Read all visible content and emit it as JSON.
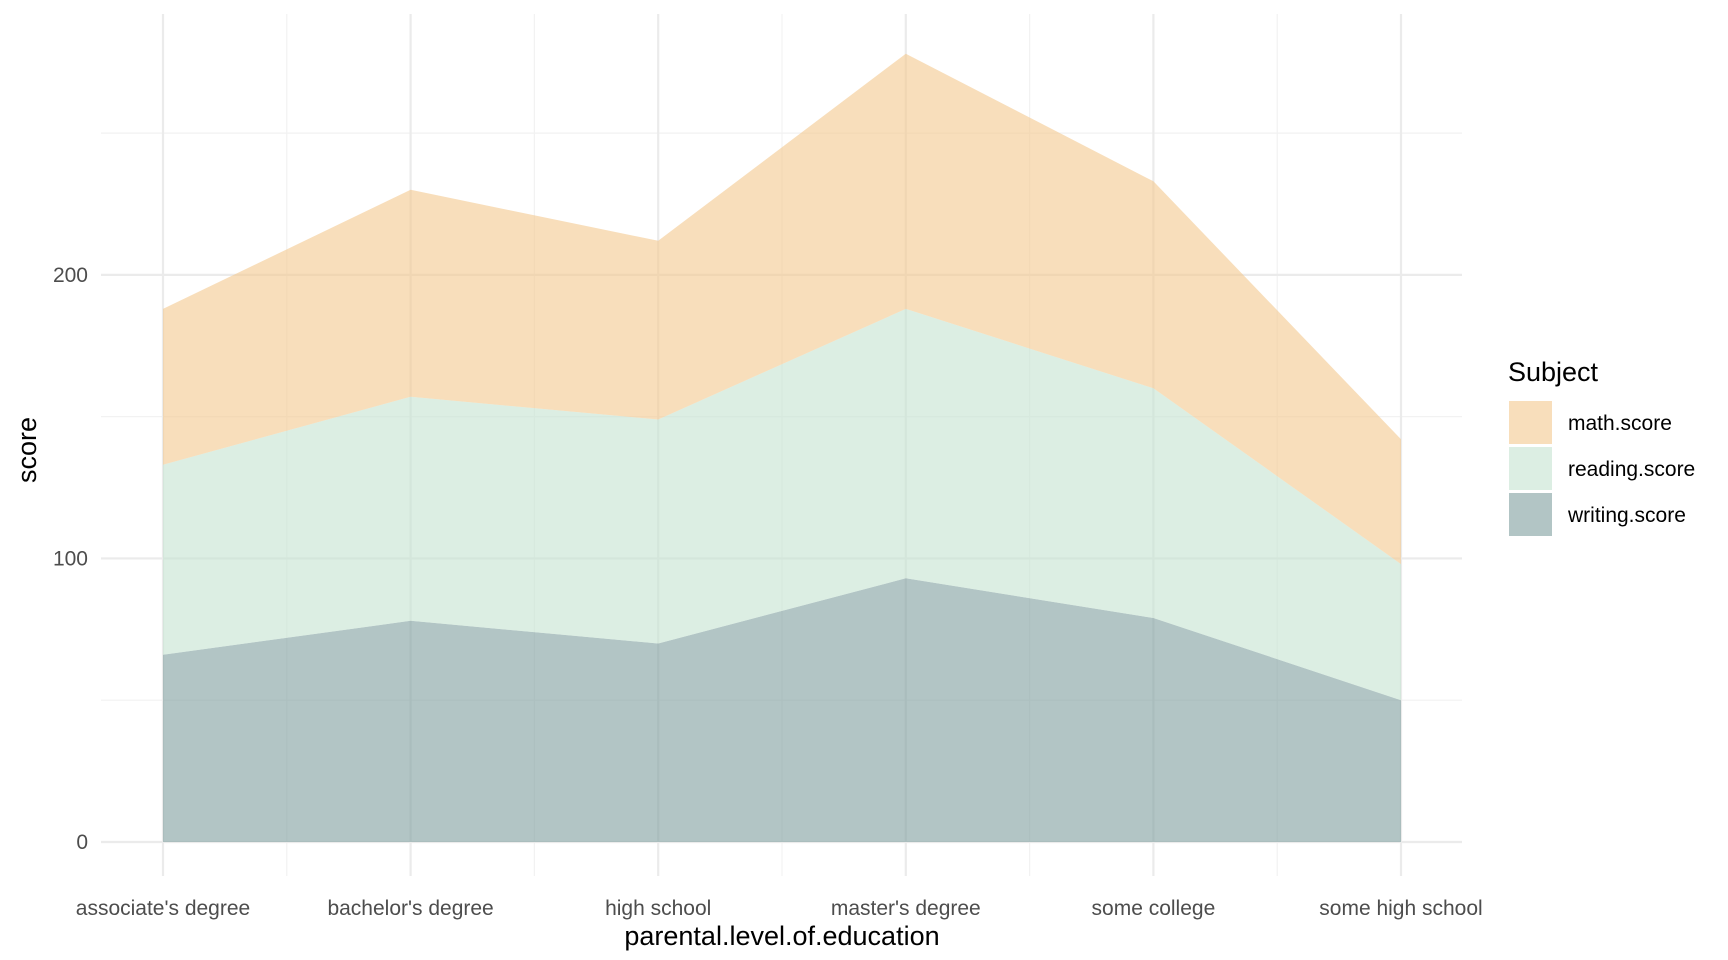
{
  "chart_data": {
    "type": "area",
    "stacked": true,
    "x": [
      "associate's degree",
      "bachelor's degree",
      "high school",
      "master's degree",
      "some college",
      "some high school"
    ],
    "series": [
      {
        "name": "math.score",
        "values": [
          55,
          73,
          63,
          90,
          73,
          44
        ],
        "color": "#f4c88e"
      },
      {
        "name": "reading.score",
        "values": [
          67,
          79,
          79,
          95,
          81,
          48
        ],
        "color": "#c4e2d1"
      },
      {
        "name": "writing.score",
        "values": [
          66,
          78,
          70,
          93,
          79,
          50
        ],
        "color": "#7f9f9f"
      }
    ],
    "fill_opacity": 0.6,
    "xlabel": "parental.level.of.education",
    "ylabel": "score",
    "yticks": [
      0,
      100,
      200
    ],
    "ylim": [
      -12,
      292
    ],
    "legend": {
      "title": "Subject",
      "position": "right"
    },
    "grid": true
  }
}
